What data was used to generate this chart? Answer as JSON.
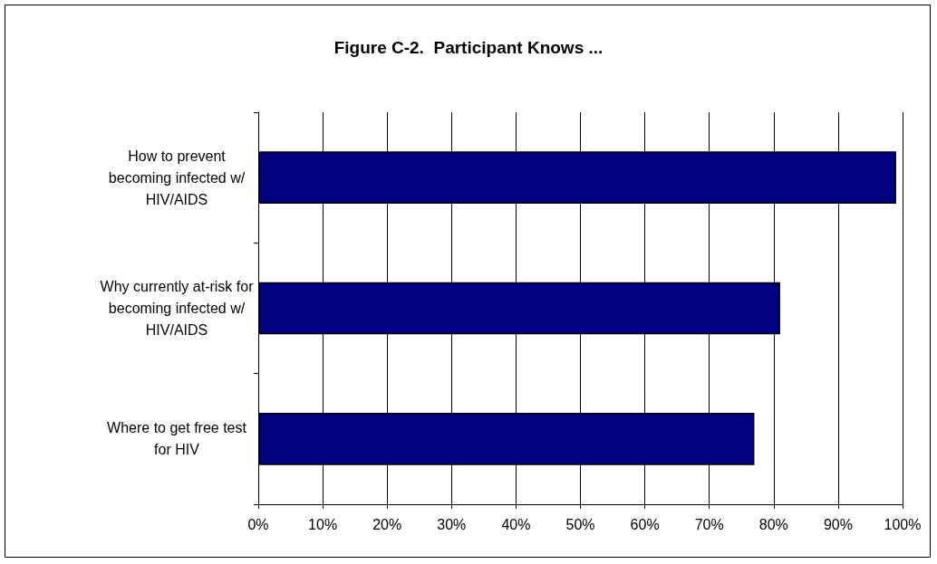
{
  "chart_data": {
    "type": "bar",
    "orientation": "horizontal",
    "title": "Figure C-2.  Participant Knows ...",
    "categories": [
      "How to prevent\nbecoming infected w/\nHIV/AIDS",
      "Why currently at-risk for\nbecoming infected w/\nHIV/AIDS",
      "Where to get free test\nfor HIV"
    ],
    "values": [
      99,
      81,
      77
    ],
    "color": "#000080",
    "xlim": [
      0,
      100
    ],
    "xticks": [
      {
        "value": 0,
        "label": "0%"
      },
      {
        "value": 10,
        "label": "10%"
      },
      {
        "value": 20,
        "label": "20%"
      },
      {
        "value": 30,
        "label": "30%"
      },
      {
        "value": 40,
        "label": "40%"
      },
      {
        "value": 50,
        "label": "50%"
      },
      {
        "value": 60,
        "label": "60%"
      },
      {
        "value": 70,
        "label": "70%"
      },
      {
        "value": 80,
        "label": "80%"
      },
      {
        "value": 90,
        "label": "90%"
      },
      {
        "value": 100,
        "label": "100%"
      }
    ],
    "grid": "x"
  }
}
